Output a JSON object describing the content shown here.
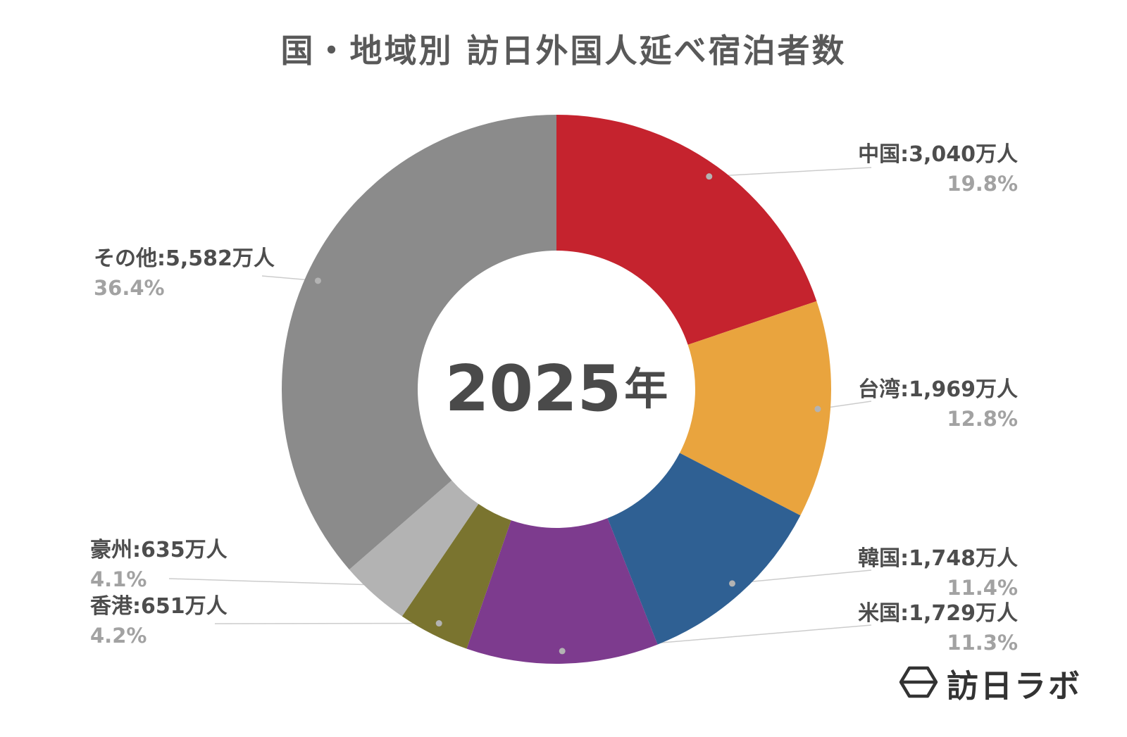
{
  "page": {
    "title": "国・地域別 訪日外国人延べ宿泊者数",
    "center_year": "2025",
    "center_year_suffix": "年",
    "logo_text": "訪日ラボ"
  },
  "chart_data": {
    "type": "pie",
    "subtype": "donut",
    "title": "国・地域別 訪日外国人延べ宿泊者数",
    "center_label": "2025年",
    "unit": "万人",
    "start_angle_deg": 0,
    "direction": "clockwise",
    "legend_position": "none",
    "segments": [
      {
        "key": "china",
        "name": "中国",
        "value": 3040,
        "percent": 19.8,
        "value_label": "中国:3,040万人",
        "percent_label": "19.8%",
        "color": "#c5232e"
      },
      {
        "key": "taiwan",
        "name": "台湾",
        "value": 1969,
        "percent": 12.8,
        "value_label": "台湾:1,969万人",
        "percent_label": "12.8%",
        "color": "#e9a43e"
      },
      {
        "key": "south-korea",
        "name": "韓国",
        "value": 1748,
        "percent": 11.4,
        "value_label": "韓国:1,748万人",
        "percent_label": "11.4%",
        "color": "#2f6093"
      },
      {
        "key": "usa",
        "name": "米国",
        "value": 1729,
        "percent": 11.3,
        "value_label": "米国:1,729万人",
        "percent_label": "11.3%",
        "color": "#7d3b8e"
      },
      {
        "key": "hong-kong",
        "name": "香港",
        "value": 651,
        "percent": 4.2,
        "value_label": "香港:651万人",
        "percent_label": "4.2%",
        "color": "#7a742f"
      },
      {
        "key": "australia",
        "name": "豪州",
        "value": 635,
        "percent": 4.1,
        "value_label": "豪州:635万人",
        "percent_label": "4.1%",
        "color": "#b3b3b3"
      },
      {
        "key": "others",
        "name": "その他",
        "value": 5582,
        "percent": 36.4,
        "value_label": "その他:5,582万人",
        "percent_label": "36.4%",
        "color": "#8b8b8b"
      }
    ],
    "colors": {
      "title_text": "#595959",
      "label_text": "#4d4d4d",
      "percent_text": "#a2a2a2",
      "center_text": "#4a4a4a",
      "connector_line": "#cccccc",
      "connector_dot": "#b3b3b3"
    }
  }
}
